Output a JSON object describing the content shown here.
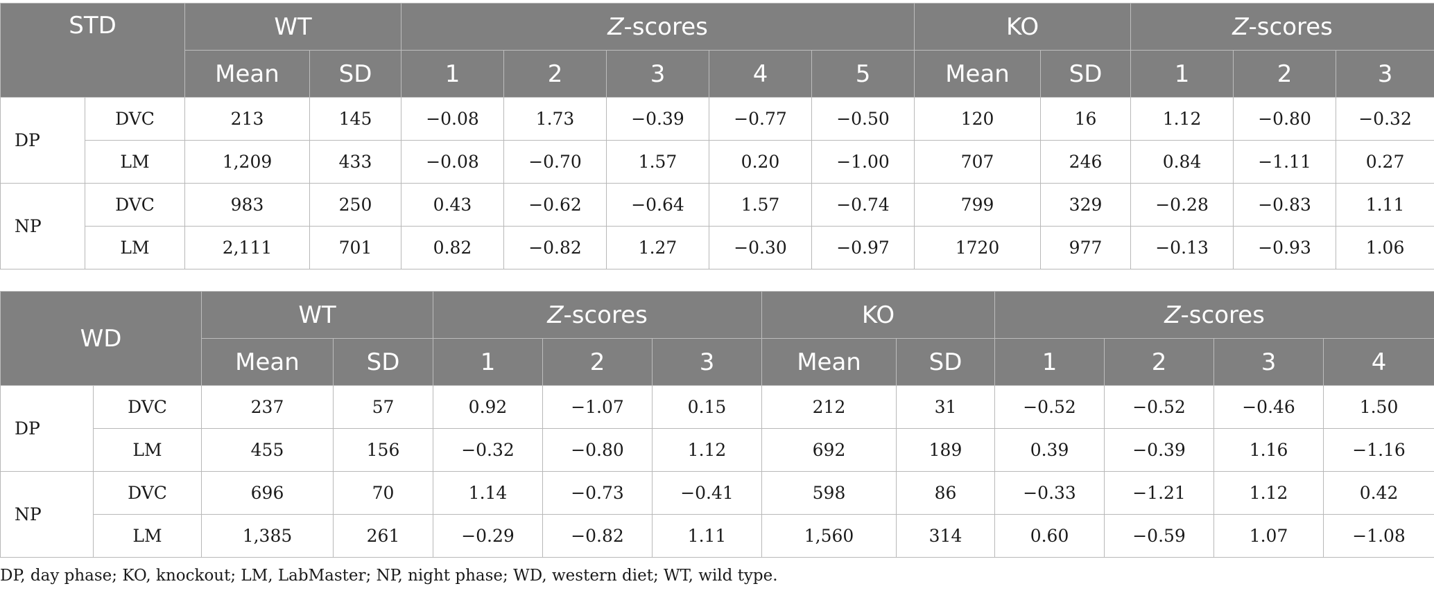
{
  "table1": {
    "corner": "STD",
    "groups": [
      {
        "label": "WT"
      },
      {
        "italic": "Z",
        "label": "-scores"
      },
      {
        "label": "KO"
      },
      {
        "italic": "Z",
        "label": "-scores"
      }
    ],
    "subheaders": [
      "Mean",
      "SD",
      "1",
      "2",
      "3",
      "4",
      "5",
      "Mean",
      "SD",
      "1",
      "2",
      "3"
    ],
    "rows": [
      {
        "phase": "DP",
        "measure": "DVC",
        "values": [
          "213",
          "145",
          "−0.08",
          "1.73",
          "−0.39",
          "−0.77",
          "−0.50",
          "120",
          "16",
          "1.12",
          "−0.80",
          "−0.32"
        ]
      },
      {
        "measure": "LM",
        "values": [
          "1,209",
          "433",
          "−0.08",
          "−0.70",
          "1.57",
          "0.20",
          "−1.00",
          "707",
          "246",
          "0.84",
          "−1.11",
          "0.27"
        ]
      },
      {
        "phase": "NP",
        "measure": "DVC",
        "values": [
          "983",
          "250",
          "0.43",
          "−0.62",
          "−0.64",
          "1.57",
          "−0.74",
          "799",
          "329",
          "−0.28",
          "−0.83",
          "1.11"
        ]
      },
      {
        "measure": "LM",
        "values": [
          "2,111",
          "701",
          "0.82",
          "−0.82",
          "1.27",
          "−0.30",
          "−0.97",
          "1720",
          "977",
          "−0.13",
          "−0.93",
          "1.06"
        ]
      }
    ]
  },
  "table2": {
    "corner": "WD",
    "groups": [
      {
        "label": "WT"
      },
      {
        "italic": "Z",
        "label": "-scores"
      },
      {
        "label": "KO"
      },
      {
        "italic": "Z",
        "label": "-scores"
      }
    ],
    "subheaders": [
      "Mean",
      "SD",
      "1",
      "2",
      "3",
      "Mean",
      "SD",
      "1",
      "2",
      "3",
      "4"
    ],
    "rows": [
      {
        "phase": "DP",
        "measure": "DVC",
        "values": [
          "237",
          "57",
          "0.92",
          "−1.07",
          "0.15",
          "212",
          "31",
          "−0.52",
          "−0.52",
          "−0.46",
          "1.50"
        ]
      },
      {
        "measure": "LM",
        "values": [
          "455",
          "156",
          "−0.32",
          "−0.80",
          "1.12",
          "692",
          "189",
          "0.39",
          "−0.39",
          "1.16",
          "−1.16"
        ]
      },
      {
        "phase": "NP",
        "measure": "DVC",
        "values": [
          "696",
          "70",
          "1.14",
          "−0.73",
          "−0.41",
          "598",
          "86",
          "−0.33",
          "−1.21",
          "1.12",
          "0.42"
        ]
      },
      {
        "measure": "LM",
        "values": [
          "1,385",
          "261",
          "−0.29",
          "−0.82",
          "1.11",
          "1,560",
          "314",
          "0.60",
          "−0.59",
          "1.07",
          "−1.08"
        ]
      }
    ]
  },
  "footnote": "DP, day phase; KO, knockout; LM, LabMaster; NP, night phase; WD, western diet; WT, wild type."
}
